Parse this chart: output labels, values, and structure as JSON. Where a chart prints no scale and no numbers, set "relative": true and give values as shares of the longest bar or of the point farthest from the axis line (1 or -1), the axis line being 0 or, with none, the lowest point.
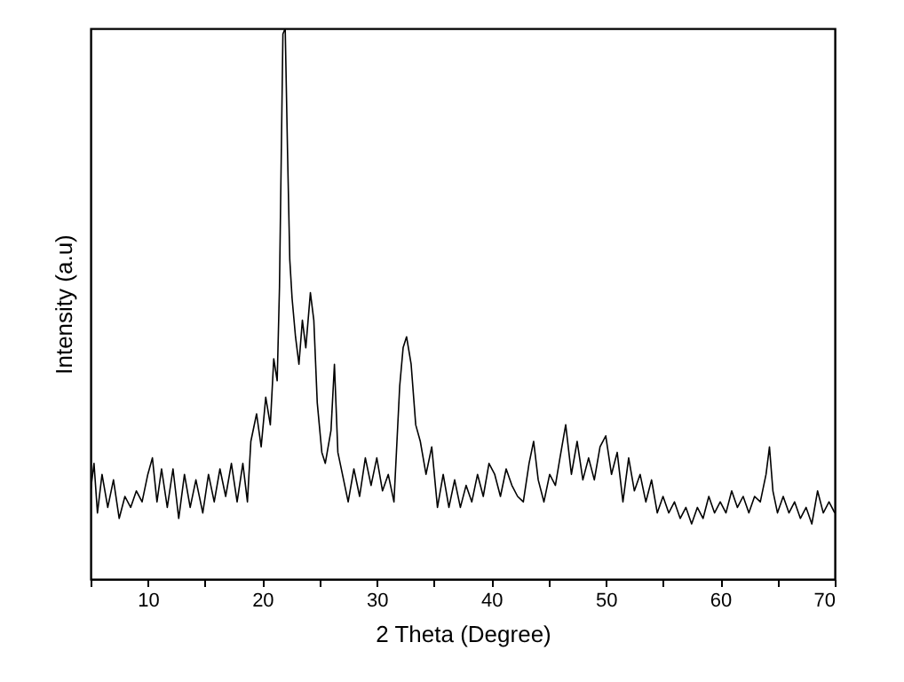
{
  "chart_data": {
    "type": "line",
    "xlabel": "2 Theta (Degree)",
    "ylabel": "Intensity (a.u)",
    "relative": true,
    "xlim": [
      5,
      70
    ],
    "xticks": [
      {
        "value": 5,
        "label": null
      },
      10,
      {
        "value": 15,
        "label": null
      },
      20,
      {
        "value": 25,
        "label": null
      },
      30,
      {
        "value": 35,
        "label": null
      },
      40,
      {
        "value": 45,
        "label": null
      },
      50,
      {
        "value": 55,
        "label": null
      },
      60,
      {
        "value": 65,
        "label": null
      },
      70
    ],
    "x": [
      5,
      5.3,
      5.6,
      6,
      6.5,
      7,
      7.5,
      8,
      8.5,
      9,
      9.5,
      10,
      10.4,
      10.8,
      11.2,
      11.7,
      12.2,
      12.7,
      13.2,
      13.7,
      14.2,
      14.8,
      15.3,
      15.8,
      16.3,
      16.8,
      17.3,
      17.8,
      18.3,
      18.7,
      19,
      19.5,
      19.9,
      20.3,
      20.7,
      21,
      21.3,
      21.5,
      21.8,
      22,
      22.2,
      22.4,
      22.6,
      22.9,
      23.2,
      23.5,
      23.8,
      24.2,
      24.5,
      24.8,
      25.2,
      25.5,
      26,
      26.3,
      26.6,
      27,
      27.5,
      28,
      28.5,
      29,
      29.5,
      30,
      30.5,
      31,
      31.5,
      32,
      32.3,
      32.6,
      33,
      33.4,
      33.8,
      34.3,
      34.8,
      35.3,
      35.8,
      36.3,
      36.8,
      37.3,
      37.8,
      38.3,
      38.8,
      39.3,
      39.8,
      40.3,
      40.8,
      41.3,
      41.8,
      42.3,
      42.8,
      43.3,
      43.7,
      44.1,
      44.6,
      45.1,
      45.6,
      46,
      46.5,
      47,
      47.5,
      48,
      48.5,
      49,
      49.5,
      50,
      50.5,
      51,
      51.5,
      52,
      52.5,
      53,
      53.5,
      54,
      54.5,
      55,
      55.5,
      56,
      56.5,
      57,
      57.5,
      58,
      58.5,
      59,
      59.5,
      60,
      60.5,
      61,
      61.5,
      62,
      62.5,
      63,
      63.5,
      64,
      64.3,
      64.6,
      65,
      65.5,
      66,
      66.5,
      67,
      67.5,
      68,
      68.5,
      69,
      69.5,
      70
    ],
    "series": [
      {
        "color": "#000000",
        "values": [
          0.16,
          0.21,
          0.12,
          0.19,
          0.13,
          0.18,
          0.11,
          0.15,
          0.13,
          0.16,
          0.14,
          0.19,
          0.22,
          0.14,
          0.2,
          0.13,
          0.2,
          0.11,
          0.19,
          0.13,
          0.18,
          0.12,
          0.19,
          0.14,
          0.2,
          0.15,
          0.21,
          0.14,
          0.21,
          0.14,
          0.25,
          0.3,
          0.24,
          0.33,
          0.28,
          0.4,
          0.36,
          0.53,
          0.99,
          1,
          0.78,
          0.58,
          0.51,
          0.44,
          0.39,
          0.47,
          0.42,
          0.52,
          0.47,
          0.32,
          0.23,
          0.21,
          0.27,
          0.39,
          0.23,
          0.19,
          0.14,
          0.2,
          0.15,
          0.22,
          0.17,
          0.22,
          0.16,
          0.19,
          0.14,
          0.35,
          0.42,
          0.44,
          0.39,
          0.28,
          0.25,
          0.19,
          0.24,
          0.13,
          0.19,
          0.13,
          0.18,
          0.13,
          0.17,
          0.14,
          0.19,
          0.15,
          0.21,
          0.19,
          0.15,
          0.2,
          0.17,
          0.15,
          0.14,
          0.21,
          0.25,
          0.18,
          0.14,
          0.19,
          0.17,
          0.22,
          0.28,
          0.19,
          0.25,
          0.18,
          0.22,
          0.18,
          0.24,
          0.26,
          0.19,
          0.23,
          0.14,
          0.22,
          0.16,
          0.19,
          0.14,
          0.18,
          0.12,
          0.15,
          0.12,
          0.14,
          0.11,
          0.13,
          0.1,
          0.13,
          0.11,
          0.15,
          0.12,
          0.14,
          0.12,
          0.16,
          0.13,
          0.15,
          0.12,
          0.15,
          0.14,
          0.19,
          0.24,
          0.16,
          0.12,
          0.15,
          0.12,
          0.14,
          0.11,
          0.13,
          0.1,
          0.16,
          0.12,
          0.14,
          0.12
        ]
      }
    ]
  }
}
